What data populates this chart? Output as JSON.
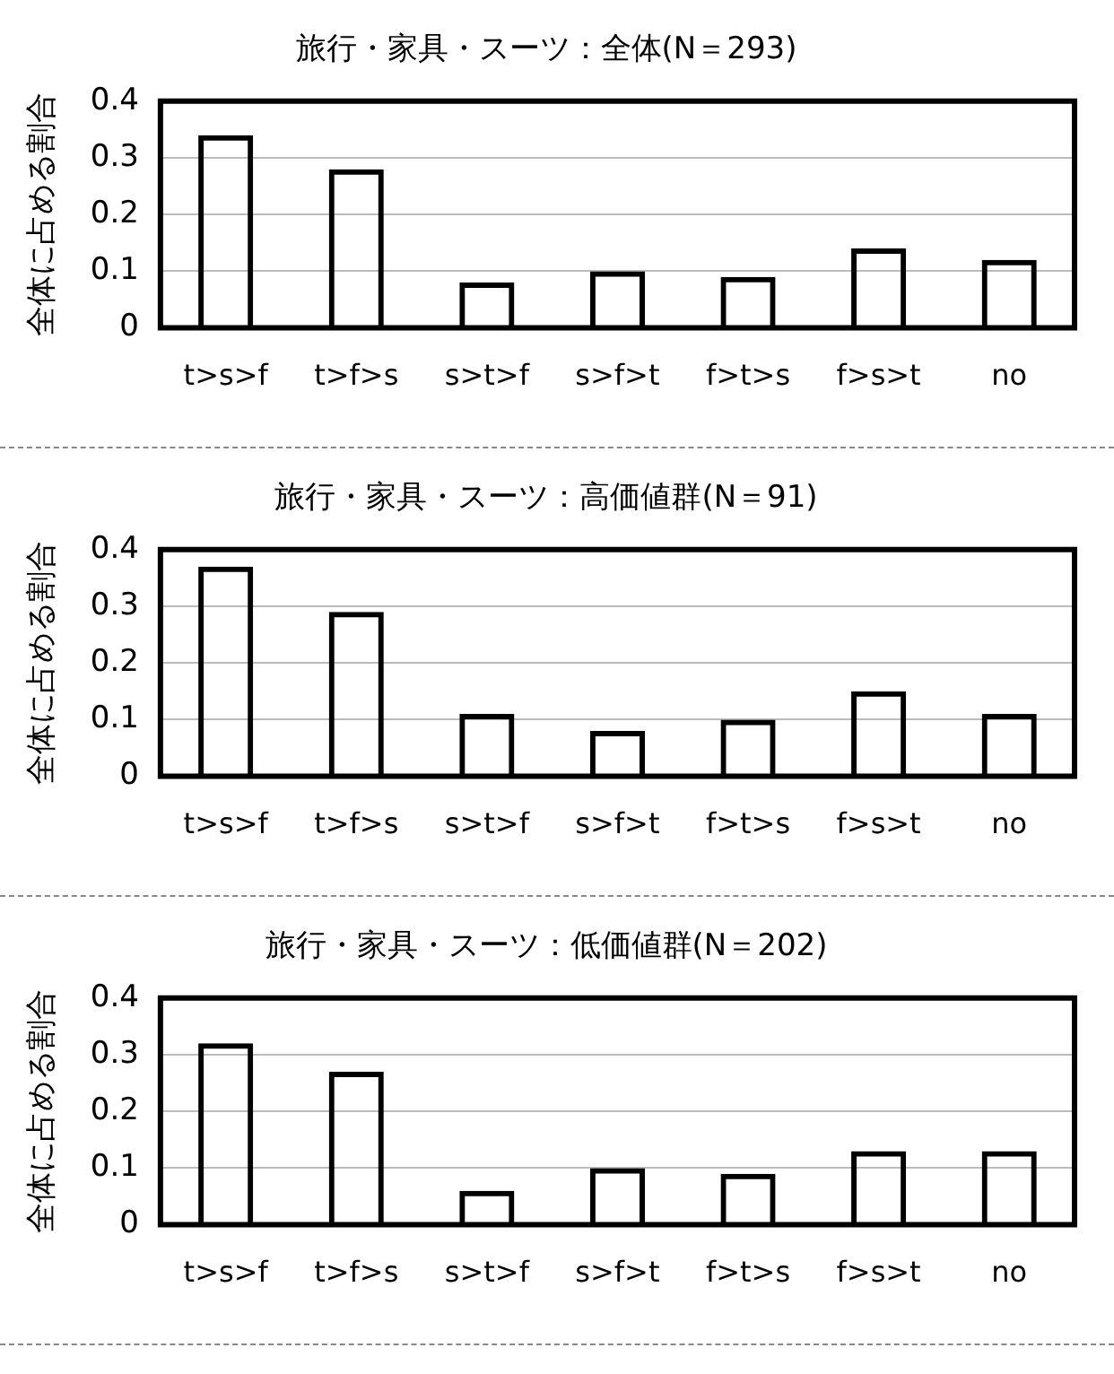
{
  "chart_data": [
    {
      "type": "bar",
      "title": "旅行・家具・スーツ：全体(N＝293)",
      "ylabel": "全体に占める割合",
      "categories": [
        "t>s>f",
        "t>f>s",
        "s>t>f",
        "s>f>t",
        "f>t>s",
        "f>s>t",
        "no"
      ],
      "values": [
        0.34,
        0.28,
        0.08,
        0.1,
        0.09,
        0.14,
        0.12
      ],
      "color": "#000000",
      "ylim": [
        0,
        0.4
      ],
      "yticks": [
        0,
        0.1,
        0.2,
        0.3,
        0.4
      ],
      "grid": "y",
      "legend": false
    },
    {
      "type": "bar",
      "title": "旅行・家具・スーツ：高価値群(N＝91)",
      "ylabel": "全体に占める割合",
      "categories": [
        "t>s>f",
        "t>f>s",
        "s>t>f",
        "s>f>t",
        "f>t>s",
        "f>s>t",
        "no"
      ],
      "values": [
        0.37,
        0.29,
        0.11,
        0.08,
        0.1,
        0.15,
        0.11
      ],
      "color": "#000000",
      "ylim": [
        0,
        0.4
      ],
      "yticks": [
        0,
        0.1,
        0.2,
        0.3,
        0.4
      ],
      "grid": "y",
      "legend": false
    },
    {
      "type": "bar",
      "title": "旅行・家具・スーツ：低価値群(N＝202)",
      "ylabel": "全体に占める割合",
      "categories": [
        "t>s>f",
        "t>f>s",
        "s>t>f",
        "s>f>t",
        "f>t>s",
        "f>s>t",
        "no"
      ],
      "values": [
        0.32,
        0.27,
        0.06,
        0.1,
        0.09,
        0.13,
        0.13
      ],
      "color": "#000000",
      "ylim": [
        0,
        0.4
      ],
      "yticks": [
        0,
        0.1,
        0.2,
        0.3,
        0.4
      ],
      "grid": "y",
      "legend": false
    }
  ]
}
